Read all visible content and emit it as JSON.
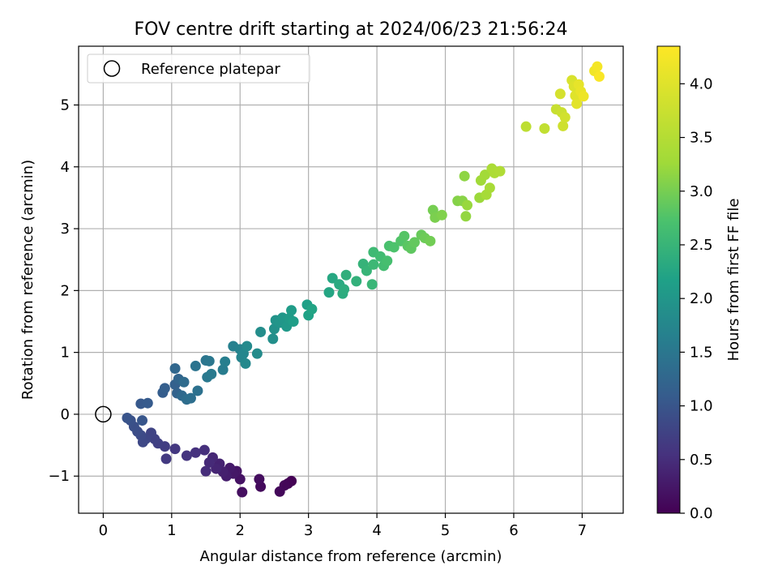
{
  "chart_data": {
    "type": "scatter",
    "title": "FOV centre drift starting at 2024/06/23 21:56:24",
    "xlabel": "Angular distance from reference (arcmin)",
    "ylabel": "Rotation from reference (arcmin)",
    "xlim": [
      -0.36,
      7.6
    ],
    "ylim": [
      -1.6,
      5.95
    ],
    "x_ticks": [
      0,
      1,
      2,
      3,
      4,
      5,
      6,
      7
    ],
    "y_ticks": [
      -1,
      0,
      1,
      2,
      3,
      4,
      5
    ],
    "grid": true,
    "legend": {
      "position": "top-left",
      "entries": [
        "Reference platepar"
      ]
    },
    "reference_point": {
      "x": 0,
      "y": 0
    },
    "colorbar": {
      "label": "Hours from first FF file",
      "range": [
        0.0,
        4.35
      ],
      "ticks": [
        "0.0",
        "0.5",
        "1.0",
        "1.5",
        "2.0",
        "2.5",
        "3.0",
        "3.5",
        "4.0"
      ],
      "colormap": "viridis"
    },
    "points": [
      {
        "x": 2.75,
        "y": -1.08,
        "t": 0.0
      },
      {
        "x": 2.7,
        "y": -1.12,
        "t": 0.03
      },
      {
        "x": 2.65,
        "y": -1.15,
        "t": 0.05
      },
      {
        "x": 2.58,
        "y": -1.25,
        "t": 0.08
      },
      {
        "x": 2.3,
        "y": -1.17,
        "t": 0.1
      },
      {
        "x": 2.28,
        "y": -1.05,
        "t": 0.13
      },
      {
        "x": 2.03,
        "y": -1.26,
        "t": 0.16
      },
      {
        "x": 2.0,
        "y": -1.05,
        "t": 0.19
      },
      {
        "x": 1.95,
        "y": -0.92,
        "t": 0.22
      },
      {
        "x": 1.9,
        "y": -0.96,
        "t": 0.25
      },
      {
        "x": 1.85,
        "y": -0.87,
        "t": 0.28
      },
      {
        "x": 1.8,
        "y": -1.0,
        "t": 0.31
      },
      {
        "x": 1.75,
        "y": -0.93,
        "t": 0.34
      },
      {
        "x": 1.7,
        "y": -0.8,
        "t": 0.37
      },
      {
        "x": 1.65,
        "y": -0.88,
        "t": 0.4
      },
      {
        "x": 1.6,
        "y": -0.7,
        "t": 0.43
      },
      {
        "x": 1.55,
        "y": -0.78,
        "t": 0.46
      },
      {
        "x": 1.5,
        "y": -0.92,
        "t": 0.49
      },
      {
        "x": 1.48,
        "y": -0.58,
        "t": 0.52
      },
      {
        "x": 1.35,
        "y": -0.62,
        "t": 0.55
      },
      {
        "x": 1.22,
        "y": -0.67,
        "t": 0.58
      },
      {
        "x": 1.05,
        "y": -0.56,
        "t": 0.62
      },
      {
        "x": 0.92,
        "y": -0.72,
        "t": 0.65
      },
      {
        "x": 0.9,
        "y": -0.52,
        "t": 0.68
      },
      {
        "x": 0.8,
        "y": -0.47,
        "t": 0.71
      },
      {
        "x": 0.75,
        "y": -0.4,
        "t": 0.74
      },
      {
        "x": 0.7,
        "y": -0.3,
        "t": 0.77
      },
      {
        "x": 0.62,
        "y": -0.4,
        "t": 0.8
      },
      {
        "x": 0.58,
        "y": -0.45,
        "t": 0.83
      },
      {
        "x": 0.55,
        "y": -0.34,
        "t": 0.86
      },
      {
        "x": 0.5,
        "y": -0.28,
        "t": 0.89
      },
      {
        "x": 0.45,
        "y": -0.2,
        "t": 0.92
      },
      {
        "x": 0.4,
        "y": -0.1,
        "t": 0.95
      },
      {
        "x": 0.35,
        "y": -0.06,
        "t": 0.98
      },
      {
        "x": 0.57,
        "y": -0.1,
        "t": 1.01
      },
      {
        "x": 0.55,
        "y": 0.17,
        "t": 1.05
      },
      {
        "x": 0.65,
        "y": 0.18,
        "t": 1.08
      },
      {
        "x": 0.87,
        "y": 0.35,
        "t": 1.11
      },
      {
        "x": 0.9,
        "y": 0.42,
        "t": 1.14
      },
      {
        "x": 1.05,
        "y": 0.48,
        "t": 1.17
      },
      {
        "x": 1.08,
        "y": 0.34,
        "t": 1.2
      },
      {
        "x": 1.1,
        "y": 0.57,
        "t": 1.23
      },
      {
        "x": 1.05,
        "y": 0.74,
        "t": 1.26
      },
      {
        "x": 1.15,
        "y": 0.3,
        "t": 1.29
      },
      {
        "x": 1.18,
        "y": 0.52,
        "t": 1.32
      },
      {
        "x": 1.22,
        "y": 0.24,
        "t": 1.35
      },
      {
        "x": 1.28,
        "y": 0.26,
        "t": 1.38
      },
      {
        "x": 1.38,
        "y": 0.38,
        "t": 1.41
      },
      {
        "x": 1.35,
        "y": 0.78,
        "t": 1.44
      },
      {
        "x": 1.5,
        "y": 0.87,
        "t": 1.47
      },
      {
        "x": 1.55,
        "y": 0.86,
        "t": 1.5
      },
      {
        "x": 1.52,
        "y": 0.6,
        "t": 1.53
      },
      {
        "x": 1.58,
        "y": 0.65,
        "t": 1.56
      },
      {
        "x": 1.75,
        "y": 0.72,
        "t": 1.59
      },
      {
        "x": 1.78,
        "y": 0.85,
        "t": 1.62
      },
      {
        "x": 1.9,
        "y": 1.1,
        "t": 1.65
      },
      {
        "x": 2.0,
        "y": 1.05,
        "t": 1.68
      },
      {
        "x": 2.02,
        "y": 0.92,
        "t": 1.71
      },
      {
        "x": 2.05,
        "y": 0.98,
        "t": 1.74
      },
      {
        "x": 2.08,
        "y": 0.82,
        "t": 1.77
      },
      {
        "x": 2.1,
        "y": 1.1,
        "t": 1.8
      },
      {
        "x": 2.25,
        "y": 0.98,
        "t": 1.83
      },
      {
        "x": 2.3,
        "y": 1.33,
        "t": 1.86
      },
      {
        "x": 2.48,
        "y": 1.22,
        "t": 1.89
      },
      {
        "x": 2.5,
        "y": 1.38,
        "t": 1.92
      },
      {
        "x": 2.52,
        "y": 1.52,
        "t": 1.95
      },
      {
        "x": 2.58,
        "y": 1.48,
        "t": 1.98
      },
      {
        "x": 2.62,
        "y": 1.56,
        "t": 2.01
      },
      {
        "x": 2.68,
        "y": 1.42,
        "t": 2.04
      },
      {
        "x": 2.72,
        "y": 1.55,
        "t": 2.07
      },
      {
        "x": 2.75,
        "y": 1.68,
        "t": 2.1
      },
      {
        "x": 2.78,
        "y": 1.5,
        "t": 2.13
      },
      {
        "x": 2.98,
        "y": 1.77,
        "t": 2.16
      },
      {
        "x": 3.0,
        "y": 1.6,
        "t": 2.19
      },
      {
        "x": 3.05,
        "y": 1.7,
        "t": 2.22
      },
      {
        "x": 3.3,
        "y": 1.97,
        "t": 2.25
      },
      {
        "x": 3.35,
        "y": 2.2,
        "t": 2.28
      },
      {
        "x": 3.45,
        "y": 2.1,
        "t": 2.31
      },
      {
        "x": 3.5,
        "y": 1.95,
        "t": 2.34
      },
      {
        "x": 3.52,
        "y": 2.02,
        "t": 2.37
      },
      {
        "x": 3.55,
        "y": 2.25,
        "t": 2.4
      },
      {
        "x": 3.7,
        "y": 2.15,
        "t": 2.43
      },
      {
        "x": 3.8,
        "y": 2.43,
        "t": 2.46
      },
      {
        "x": 3.85,
        "y": 2.32,
        "t": 2.49
      },
      {
        "x": 3.93,
        "y": 2.1,
        "t": 2.52
      },
      {
        "x": 3.95,
        "y": 2.42,
        "t": 2.55
      },
      {
        "x": 3.95,
        "y": 2.62,
        "t": 2.58
      },
      {
        "x": 4.05,
        "y": 2.55,
        "t": 2.61
      },
      {
        "x": 4.1,
        "y": 2.4,
        "t": 2.64
      },
      {
        "x": 4.15,
        "y": 2.48,
        "t": 2.67
      },
      {
        "x": 4.18,
        "y": 2.72,
        "t": 2.7
      },
      {
        "x": 4.25,
        "y": 2.7,
        "t": 2.73
      },
      {
        "x": 4.35,
        "y": 2.8,
        "t": 2.76
      },
      {
        "x": 4.4,
        "y": 2.88,
        "t": 2.79
      },
      {
        "x": 4.45,
        "y": 2.72,
        "t": 2.82
      },
      {
        "x": 4.5,
        "y": 2.68,
        "t": 2.85
      },
      {
        "x": 4.55,
        "y": 2.78,
        "t": 2.88
      },
      {
        "x": 4.65,
        "y": 2.9,
        "t": 2.91
      },
      {
        "x": 4.7,
        "y": 2.85,
        "t": 2.94
      },
      {
        "x": 4.78,
        "y": 2.8,
        "t": 2.97
      },
      {
        "x": 4.82,
        "y": 3.3,
        "t": 3.0
      },
      {
        "x": 4.85,
        "y": 3.18,
        "t": 3.03
      },
      {
        "x": 4.95,
        "y": 3.22,
        "t": 3.06
      },
      {
        "x": 5.18,
        "y": 3.45,
        "t": 3.09
      },
      {
        "x": 5.25,
        "y": 3.45,
        "t": 3.12
      },
      {
        "x": 5.28,
        "y": 3.85,
        "t": 3.15
      },
      {
        "x": 5.3,
        "y": 3.2,
        "t": 3.18
      },
      {
        "x": 5.32,
        "y": 3.38,
        "t": 3.21
      },
      {
        "x": 5.5,
        "y": 3.5,
        "t": 3.24
      },
      {
        "x": 5.52,
        "y": 3.78,
        "t": 3.27
      },
      {
        "x": 5.58,
        "y": 3.87,
        "t": 3.3
      },
      {
        "x": 5.6,
        "y": 3.55,
        "t": 3.33
      },
      {
        "x": 5.65,
        "y": 3.66,
        "t": 3.36
      },
      {
        "x": 5.68,
        "y": 3.97,
        "t": 3.39
      },
      {
        "x": 5.72,
        "y": 3.9,
        "t": 3.42
      },
      {
        "x": 5.8,
        "y": 3.93,
        "t": 3.45
      },
      {
        "x": 6.18,
        "y": 4.65,
        "t": 3.6
      },
      {
        "x": 6.45,
        "y": 4.62,
        "t": 3.65
      },
      {
        "x": 6.62,
        "y": 4.93,
        "t": 3.72
      },
      {
        "x": 6.7,
        "y": 4.88,
        "t": 3.76
      },
      {
        "x": 6.72,
        "y": 4.66,
        "t": 3.8
      },
      {
        "x": 6.75,
        "y": 4.8,
        "t": 3.84
      },
      {
        "x": 6.68,
        "y": 5.18,
        "t": 3.88
      },
      {
        "x": 6.85,
        "y": 5.4,
        "t": 3.92
      },
      {
        "x": 6.88,
        "y": 5.3,
        "t": 3.96
      },
      {
        "x": 6.9,
        "y": 5.15,
        "t": 4.0
      },
      {
        "x": 6.92,
        "y": 5.02,
        "t": 4.04
      },
      {
        "x": 6.95,
        "y": 5.33,
        "t": 4.08
      },
      {
        "x": 6.98,
        "y": 5.22,
        "t": 4.12
      },
      {
        "x": 7.02,
        "y": 5.14,
        "t": 4.16
      },
      {
        "x": 7.18,
        "y": 5.55,
        "t": 4.2
      },
      {
        "x": 7.22,
        "y": 5.62,
        "t": 4.25
      },
      {
        "x": 7.25,
        "y": 5.46,
        "t": 4.3
      }
    ]
  }
}
